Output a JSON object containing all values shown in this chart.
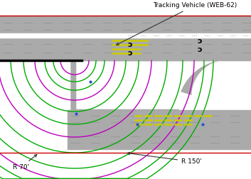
{
  "bg_color": "#ffffff",
  "road_gray": "#aaaaaa",
  "road_dark": "#888888",
  "dash_color": "#999999",
  "green_color": "#00aa00",
  "purple_color": "#bb00bb",
  "yellow_color": "#cccc00",
  "red_color": "#cc0000",
  "black": "#000000",
  "label_tracking": "Tracking Vehicle (WEB-62)",
  "label_R70": "R 70'",
  "label_R150": "R 150'",
  "fig_w": 3.53,
  "fig_h": 2.52,
  "dpi": 100
}
